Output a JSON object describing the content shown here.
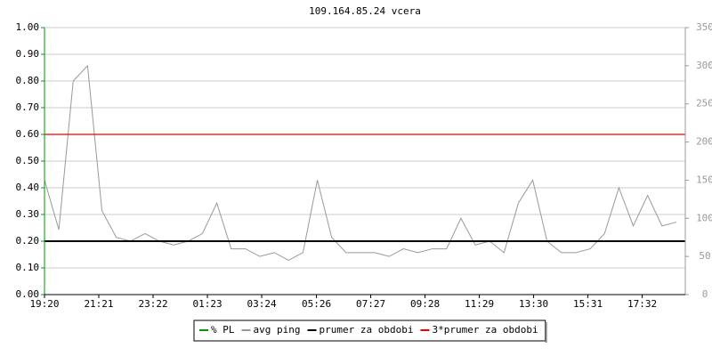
{
  "chart_data": {
    "type": "line",
    "title": "109.164.85.24 vcera",
    "xlim": [
      0,
      1428
    ],
    "xticks": [
      {
        "value": 0,
        "label": "19:20"
      },
      {
        "value": 121,
        "label": "21:21"
      },
      {
        "value": 242,
        "label": "23:22"
      },
      {
        "value": 363,
        "label": "01:23"
      },
      {
        "value": 484,
        "label": "03:24"
      },
      {
        "value": 606,
        "label": "05:26"
      },
      {
        "value": 727,
        "label": "07:27"
      },
      {
        "value": 848,
        "label": "09:28"
      },
      {
        "value": 969,
        "label": "11:29"
      },
      {
        "value": 1090,
        "label": "13:30"
      },
      {
        "value": 1211,
        "label": "15:31"
      },
      {
        "value": 1332,
        "label": "17:32"
      }
    ],
    "ylim": [
      0,
      1
    ],
    "yticks": [
      {
        "value": 0,
        "label": "0.00"
      },
      {
        "value": 0.1,
        "label": "0.10"
      },
      {
        "value": 0.2,
        "label": "0.20"
      },
      {
        "value": 0.3,
        "label": "0.30"
      },
      {
        "value": 0.4,
        "label": "0.40"
      },
      {
        "value": 0.5,
        "label": "0.50"
      },
      {
        "value": 0.6,
        "label": "0.60"
      },
      {
        "value": 0.7,
        "label": "0.70"
      },
      {
        "value": 0.8,
        "label": "0.80"
      },
      {
        "value": 0.9,
        "label": "0.90"
      },
      {
        "value": 1,
        "label": "1.00"
      }
    ],
    "y2lim": [
      0,
      350
    ],
    "y2ticks": [
      0,
      50,
      100,
      150,
      200,
      250,
      300,
      350
    ],
    "grid": true,
    "x": [
      0,
      32,
      64,
      96,
      128,
      160,
      192,
      224,
      256,
      288,
      320,
      352,
      384,
      416,
      448,
      480,
      512,
      544,
      576,
      608,
      640,
      672,
      704,
      736,
      768,
      800,
      832,
      864,
      896,
      928,
      960,
      992,
      1024,
      1056,
      1088,
      1120,
      1152,
      1184,
      1216,
      1248,
      1280,
      1312,
      1344,
      1376,
      1408
    ],
    "series": [
      {
        "name": "% PL",
        "color": "#009900",
        "axis": "y",
        "values": [
          0,
          0,
          0,
          0,
          0,
          0,
          0,
          0,
          0,
          0,
          0,
          0,
          0,
          0,
          0,
          0,
          0,
          0,
          0,
          0,
          0,
          0,
          0,
          0,
          0,
          0,
          0,
          0,
          0,
          0,
          0,
          0,
          0,
          0,
          0,
          0,
          0,
          0,
          0,
          0,
          0,
          0,
          0,
          0,
          0
        ]
      },
      {
        "name": "avg ping",
        "color": "#999999",
        "axis": "y2",
        "values": [
          150,
          85,
          280,
          300,
          110,
          75,
          70,
          80,
          70,
          65,
          70,
          80,
          120,
          60,
          60,
          50,
          55,
          45,
          55,
          150,
          75,
          55,
          55,
          55,
          50,
          60,
          55,
          60,
          60,
          100,
          65,
          70,
          55,
          120,
          150,
          70,
          55,
          55,
          60,
          80,
          140,
          90,
          130,
          90,
          95
        ]
      },
      {
        "name": "prumer za obdobi",
        "color": "#000000",
        "axis": "y2",
        "value": 70
      },
      {
        "name": "3*prumer za obdobi",
        "color": "#ee0000",
        "axis": "y2",
        "value": 210
      }
    ]
  }
}
